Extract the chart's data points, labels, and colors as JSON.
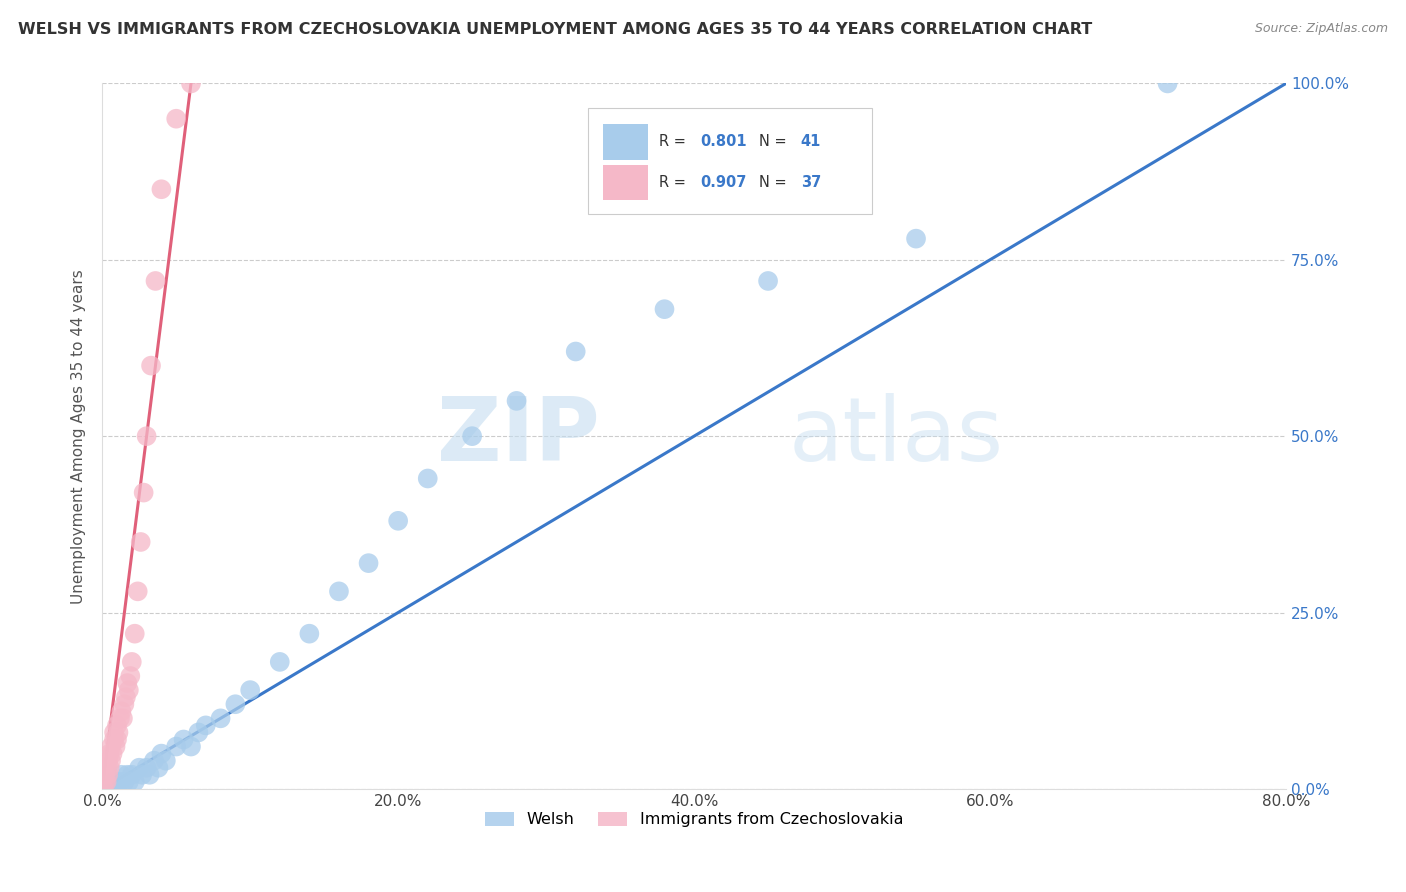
{
  "title": "WELSH VS IMMIGRANTS FROM CZECHOSLOVAKIA UNEMPLOYMENT AMONG AGES 35 TO 44 YEARS CORRELATION CHART",
  "source": "Source: ZipAtlas.com",
  "ylabel": "Unemployment Among Ages 35 to 44 years",
  "xlim": [
    0.0,
    0.8
  ],
  "ylim": [
    0.0,
    1.0
  ],
  "xticks": [
    0.0,
    0.2,
    0.4,
    0.6,
    0.8
  ],
  "xticklabels": [
    "0.0%",
    "20.0%",
    "40.0%",
    "60.0%",
    "80.0%"
  ],
  "yticks": [
    0.0,
    0.25,
    0.5,
    0.75,
    1.0
  ],
  "yticklabels": [
    "0.0%",
    "25.0%",
    "50.0%",
    "75.0%",
    "100.0%"
  ],
  "welsh_color": "#a8cceb",
  "czech_color": "#f5b8c8",
  "welsh_line_color": "#3a78c9",
  "czech_line_color": "#e0607a",
  "R_welsh": 0.801,
  "N_welsh": 41,
  "R_czech": 0.907,
  "N_czech": 37,
  "legend_labels": [
    "Welsh",
    "Immigrants from Czechoslovakia"
  ],
  "watermark_zip": "ZIP",
  "watermark_atlas": "atlas",
  "welsh_x": [
    0.005,
    0.007,
    0.008,
    0.009,
    0.01,
    0.012,
    0.013,
    0.015,
    0.017,
    0.018,
    0.02,
    0.022,
    0.025,
    0.027,
    0.03,
    0.032,
    0.035,
    0.038,
    0.04,
    0.043,
    0.05,
    0.055,
    0.06,
    0.065,
    0.07,
    0.08,
    0.09,
    0.1,
    0.12,
    0.14,
    0.16,
    0.18,
    0.2,
    0.22,
    0.25,
    0.28,
    0.32,
    0.38,
    0.45,
    0.55,
    0.72
  ],
  "welsh_y": [
    0.0,
    0.0,
    0.01,
    0.01,
    0.0,
    0.01,
    0.02,
    0.01,
    0.02,
    0.01,
    0.02,
    0.01,
    0.03,
    0.02,
    0.03,
    0.02,
    0.04,
    0.03,
    0.05,
    0.04,
    0.06,
    0.07,
    0.06,
    0.08,
    0.09,
    0.1,
    0.12,
    0.14,
    0.18,
    0.22,
    0.28,
    0.32,
    0.38,
    0.44,
    0.5,
    0.55,
    0.62,
    0.68,
    0.72,
    0.78,
    1.0
  ],
  "czech_x": [
    0.001,
    0.002,
    0.002,
    0.003,
    0.003,
    0.004,
    0.004,
    0.005,
    0.005,
    0.006,
    0.006,
    0.007,
    0.008,
    0.008,
    0.009,
    0.01,
    0.01,
    0.011,
    0.012,
    0.013,
    0.014,
    0.015,
    0.016,
    0.017,
    0.018,
    0.019,
    0.02,
    0.022,
    0.024,
    0.026,
    0.028,
    0.03,
    0.033,
    0.036,
    0.04,
    0.05,
    0.06
  ],
  "czech_y": [
    0.0,
    0.01,
    0.02,
    0.01,
    0.03,
    0.02,
    0.04,
    0.03,
    0.05,
    0.04,
    0.06,
    0.05,
    0.07,
    0.08,
    0.06,
    0.07,
    0.09,
    0.08,
    0.1,
    0.11,
    0.1,
    0.12,
    0.13,
    0.15,
    0.14,
    0.16,
    0.18,
    0.22,
    0.28,
    0.35,
    0.42,
    0.5,
    0.6,
    0.72,
    0.85,
    0.95,
    1.0
  ],
  "welsh_line_x": [
    0.0,
    0.8
  ],
  "welsh_line_y": [
    0.0,
    1.0
  ],
  "czech_line_x": [
    0.0,
    0.06
  ],
  "czech_line_y": [
    0.0,
    1.0
  ],
  "bg_color": "#ffffff",
  "grid_color": "#cccccc",
  "title_fontsize": 11.5,
  "tick_fontsize": 11,
  "ylabel_fontsize": 11,
  "source_fontsize": 9
}
